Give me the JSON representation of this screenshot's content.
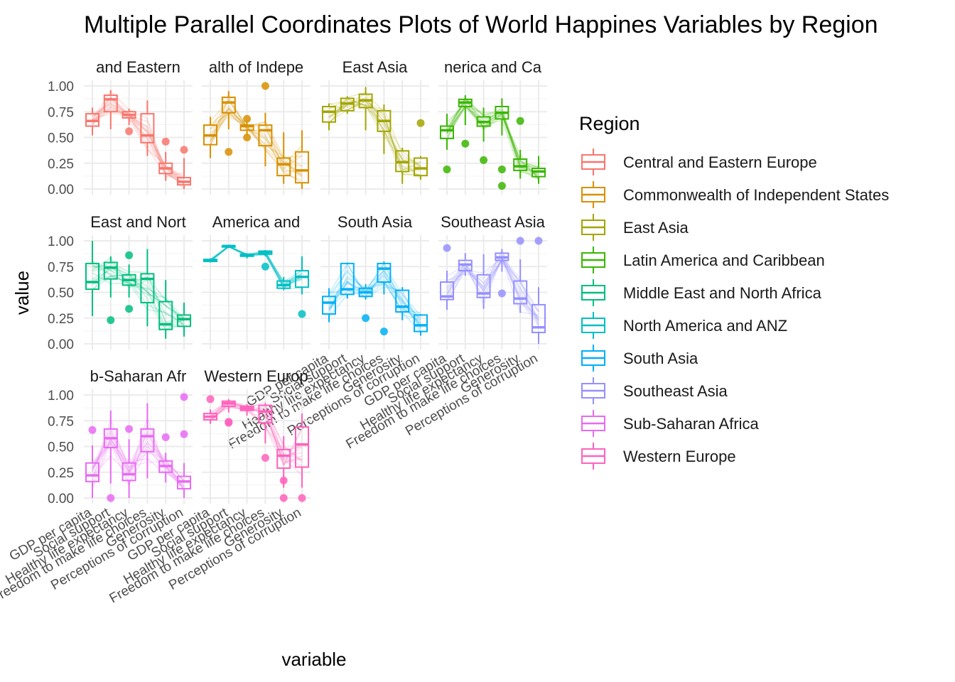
{
  "chart_data": {
    "type": "parallel-coordinates-boxplot",
    "title": "Multiple Parallel Coordinates Plots of World Happines Variables by Region",
    "xlabel": "variable",
    "ylabel": "value",
    "ylim": [
      0,
      1
    ],
    "yticks": [
      "0.00",
      "0.25",
      "0.50",
      "0.75",
      "1.00"
    ],
    "variables": [
      "GDP per capita",
      "Social support",
      "Healthy life expectancy",
      "Freedom to make life choices",
      "Generosity",
      "Perceptions of corruption"
    ],
    "legend": {
      "title": "Region",
      "position": "right"
    },
    "grid": true,
    "panels": [
      {
        "region": "Central and Eastern Europe",
        "strip": "and Eastern",
        "color": "#F8766D",
        "boxes": [
          [
            0.52,
            0.61,
            0.66,
            0.73,
            0.79
          ],
          [
            0.58,
            0.75,
            0.87,
            0.91,
            0.96
          ],
          [
            0.62,
            0.69,
            0.72,
            0.75,
            0.78
          ],
          [
            0.32,
            0.45,
            0.52,
            0.73,
            0.86
          ],
          [
            0.08,
            0.15,
            0.2,
            0.25,
            0.36
          ],
          [
            0.0,
            0.04,
            0.07,
            0.11,
            0.3
          ]
        ],
        "outliers": [
          [
            2,
            0.56
          ],
          [
            4,
            0.46
          ],
          [
            5,
            0.38
          ]
        ]
      },
      {
        "region": "Commonwealth of Independent States",
        "strip": "alth of Indepe",
        "color": "#D89000",
        "boxes": [
          [
            0.3,
            0.43,
            0.52,
            0.62,
            0.7
          ],
          [
            0.58,
            0.74,
            0.84,
            0.89,
            0.95
          ],
          [
            0.52,
            0.57,
            0.61,
            0.62,
            0.66
          ],
          [
            0.22,
            0.42,
            0.57,
            0.62,
            0.74
          ],
          [
            0.05,
            0.13,
            0.24,
            0.3,
            0.55
          ],
          [
            0.0,
            0.06,
            0.18,
            0.36,
            0.57
          ]
        ],
        "outliers": [
          [
            1,
            0.36
          ],
          [
            2,
            0.68
          ],
          [
            2,
            0.5
          ],
          [
            3,
            1.0
          ]
        ]
      },
      {
        "region": "East Asia",
        "strip": "East Asia",
        "color": "#A3A500",
        "boxes": [
          [
            0.57,
            0.65,
            0.75,
            0.8,
            0.83
          ],
          [
            0.73,
            0.76,
            0.83,
            0.88,
            0.9
          ],
          [
            0.57,
            0.79,
            0.86,
            0.92,
            0.99
          ],
          [
            0.34,
            0.56,
            0.66,
            0.76,
            0.82
          ],
          [
            0.05,
            0.17,
            0.26,
            0.37,
            0.4
          ],
          [
            0.09,
            0.13,
            0.2,
            0.3,
            0.32
          ]
        ],
        "outliers": [
          [
            5,
            0.64
          ]
        ]
      },
      {
        "region": "Latin America and Caribbean",
        "strip": "nerica and Ca",
        "color": "#39B600",
        "boxes": [
          [
            0.38,
            0.49,
            0.57,
            0.61,
            0.73
          ],
          [
            0.62,
            0.8,
            0.84,
            0.87,
            0.91
          ],
          [
            0.46,
            0.61,
            0.65,
            0.7,
            0.79
          ],
          [
            0.52,
            0.68,
            0.74,
            0.8,
            0.88
          ],
          [
            0.1,
            0.18,
            0.22,
            0.29,
            0.38
          ],
          [
            0.05,
            0.12,
            0.17,
            0.2,
            0.32
          ]
        ],
        "outliers": [
          [
            0,
            0.19
          ],
          [
            1,
            0.44
          ],
          [
            2,
            0.28
          ],
          [
            3,
            0.19
          ],
          [
            3,
            0.03
          ],
          [
            4,
            0.66
          ]
        ]
      },
      {
        "region": "Middle East and North Africa",
        "strip": "East and Nort",
        "color": "#00BF7D",
        "boxes": [
          [
            0.27,
            0.53,
            0.6,
            0.78,
            1.0
          ],
          [
            0.45,
            0.63,
            0.74,
            0.79,
            0.85
          ],
          [
            0.45,
            0.57,
            0.62,
            0.67,
            0.77
          ],
          [
            0.17,
            0.4,
            0.63,
            0.68,
            0.92
          ],
          [
            0.05,
            0.14,
            0.19,
            0.41,
            0.62
          ],
          [
            0.07,
            0.17,
            0.24,
            0.28,
            0.4
          ]
        ],
        "outliers": [
          [
            1,
            0.23
          ],
          [
            2,
            0.86
          ],
          [
            2,
            0.34
          ]
        ]
      },
      {
        "region": "North America and ANZ",
        "strip": "America and",
        "color": "#00BFC4",
        "boxes": [
          [
            0.79,
            0.8,
            0.81,
            0.82,
            0.83
          ],
          [
            0.93,
            0.94,
            0.95,
            0.95,
            0.96
          ],
          [
            0.83,
            0.85,
            0.86,
            0.87,
            0.88
          ],
          [
            0.85,
            0.87,
            0.89,
            0.9,
            0.91
          ],
          [
            0.52,
            0.54,
            0.57,
            0.61,
            0.65
          ],
          [
            0.48,
            0.55,
            0.65,
            0.71,
            0.85
          ]
        ],
        "outliers": [
          [
            3,
            0.75
          ],
          [
            5,
            0.29
          ]
        ]
      },
      {
        "region": "South Asia",
        "strip": "South Asia",
        "color": "#00B0F6",
        "boxes": [
          [
            0.21,
            0.29,
            0.4,
            0.46,
            0.54
          ],
          [
            0.44,
            0.48,
            0.53,
            0.78,
            0.79
          ],
          [
            0.43,
            0.46,
            0.5,
            0.54,
            0.58
          ],
          [
            0.48,
            0.6,
            0.73,
            0.78,
            0.8
          ],
          [
            0.23,
            0.31,
            0.36,
            0.52,
            0.55
          ],
          [
            0.08,
            0.12,
            0.18,
            0.28,
            0.29
          ]
        ],
        "outliers": [
          [
            2,
            0.25
          ],
          [
            3,
            0.12
          ]
        ]
      },
      {
        "region": "Southeast Asia",
        "strip": "Southeast Asia",
        "color": "#9590FF",
        "boxes": [
          [
            0.33,
            0.43,
            0.46,
            0.6,
            0.71
          ],
          [
            0.66,
            0.71,
            0.77,
            0.81,
            0.88
          ],
          [
            0.34,
            0.45,
            0.49,
            0.67,
            0.87
          ],
          [
            0.7,
            0.81,
            0.84,
            0.88,
            0.92
          ],
          [
            0.3,
            0.39,
            0.44,
            0.61,
            0.82
          ],
          [
            0.0,
            0.11,
            0.16,
            0.38,
            0.55
          ]
        ],
        "outliers": [
          [
            0,
            0.93
          ],
          [
            3,
            0.49
          ],
          [
            4,
            1.0
          ],
          [
            5,
            1.0
          ]
        ]
      },
      {
        "region": "Sub-Saharan Africa",
        "strip": "b-Saharan Afr",
        "color": "#E76BF3",
        "boxes": [
          [
            0.0,
            0.16,
            0.22,
            0.34,
            0.51
          ],
          [
            0.14,
            0.49,
            0.58,
            0.67,
            0.85
          ],
          [
            0.0,
            0.17,
            0.23,
            0.34,
            0.57
          ],
          [
            0.19,
            0.45,
            0.6,
            0.67,
            0.92
          ],
          [
            0.15,
            0.25,
            0.31,
            0.36,
            0.44
          ],
          [
            0.0,
            0.09,
            0.16,
            0.21,
            0.34
          ]
        ],
        "outliers": [
          [
            0,
            0.66
          ],
          [
            1,
            0.0
          ],
          [
            2,
            0.67
          ],
          [
            4,
            0.59
          ],
          [
            5,
            0.98
          ],
          [
            5,
            0.62
          ]
        ]
      },
      {
        "region": "Western Europe",
        "strip": "Western Europ",
        "color": "#FF62BC",
        "boxes": [
          [
            0.72,
            0.76,
            0.79,
            0.82,
            0.86
          ],
          [
            0.83,
            0.89,
            0.92,
            0.94,
            0.96
          ],
          [
            0.8,
            0.85,
            0.87,
            0.89,
            0.91
          ],
          [
            0.53,
            0.73,
            0.84,
            0.9,
            0.92
          ],
          [
            0.1,
            0.29,
            0.41,
            0.47,
            0.6
          ],
          [
            0.1,
            0.3,
            0.52,
            0.69,
            0.82
          ]
        ],
        "outliers": [
          [
            0,
            0.96
          ],
          [
            1,
            0.74
          ],
          [
            1,
            0.73
          ],
          [
            3,
            0.39
          ],
          [
            4,
            0.17
          ],
          [
            4,
            0.0
          ],
          [
            5,
            0.0
          ]
        ]
      }
    ]
  }
}
